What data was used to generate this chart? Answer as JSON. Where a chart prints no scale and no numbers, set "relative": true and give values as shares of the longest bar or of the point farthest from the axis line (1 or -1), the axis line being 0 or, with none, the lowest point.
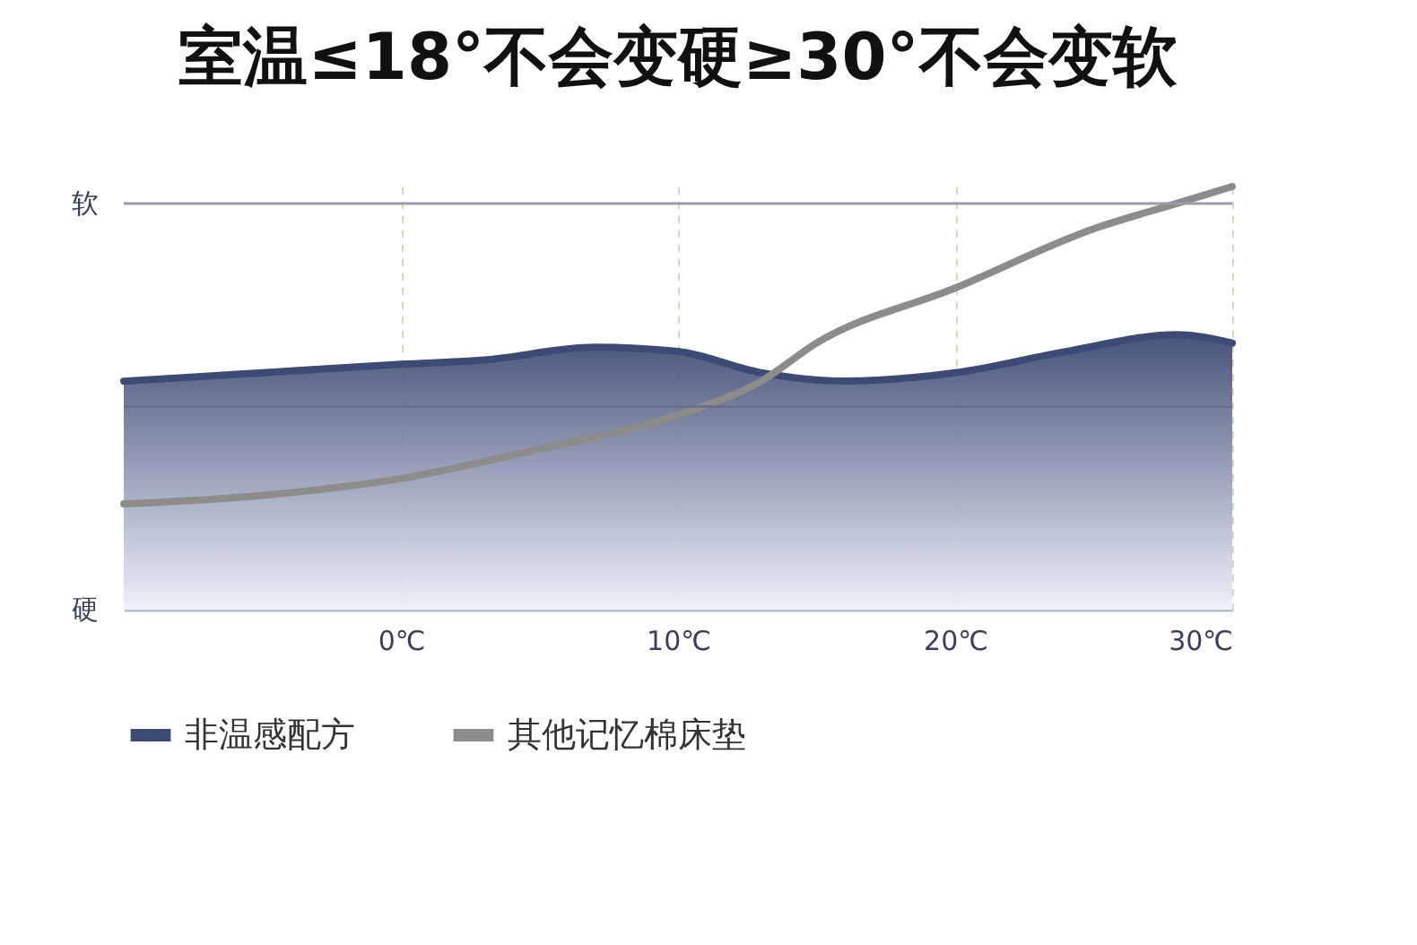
{
  "chart_data": {
    "type": "line",
    "title": "室温≤18°不会变硬≥30°不会变软",
    "relative": true,
    "x": [
      -10,
      -5,
      0,
      3,
      7,
      10,
      13,
      16,
      20,
      24,
      28,
      30
    ],
    "xlim": [
      -10,
      30
    ],
    "xticks": [
      {
        "value": 0,
        "label": "0℃"
      },
      {
        "value": 10,
        "label": "10℃"
      },
      {
        "value": 20,
        "label": "20℃"
      },
      {
        "value": 30,
        "label": "30℃"
      }
    ],
    "ref_lines": [
      {
        "axis": "y",
        "value": 0.96,
        "label": "软",
        "color": "#9a9ab0"
      },
      {
        "axis": "y",
        "value": 0.48,
        "color": "#6a6f8c"
      }
    ],
    "annotations": [
      "硬"
    ],
    "series": [
      {
        "name": "非温感配方",
        "type": "area",
        "color": "#3d4a73",
        "values": [
          0.54,
          0.56,
          0.58,
          0.59,
          0.62,
          0.61,
          0.56,
          0.54,
          0.56,
          0.61,
          0.65,
          0.63
        ]
      },
      {
        "name": "其他记忆棉床垫",
        "color": "#8c8c8c",
        "x": [
          -10,
          -5,
          0,
          5,
          10,
          13,
          15,
          20,
          25,
          28,
          30
        ],
        "values": [
          0.25,
          0.27,
          0.31,
          0.38,
          0.46,
          0.54,
          0.63,
          0.76,
          0.9,
          0.96,
          1.0
        ]
      }
    ],
    "grid": "x",
    "legend": "bottom"
  }
}
